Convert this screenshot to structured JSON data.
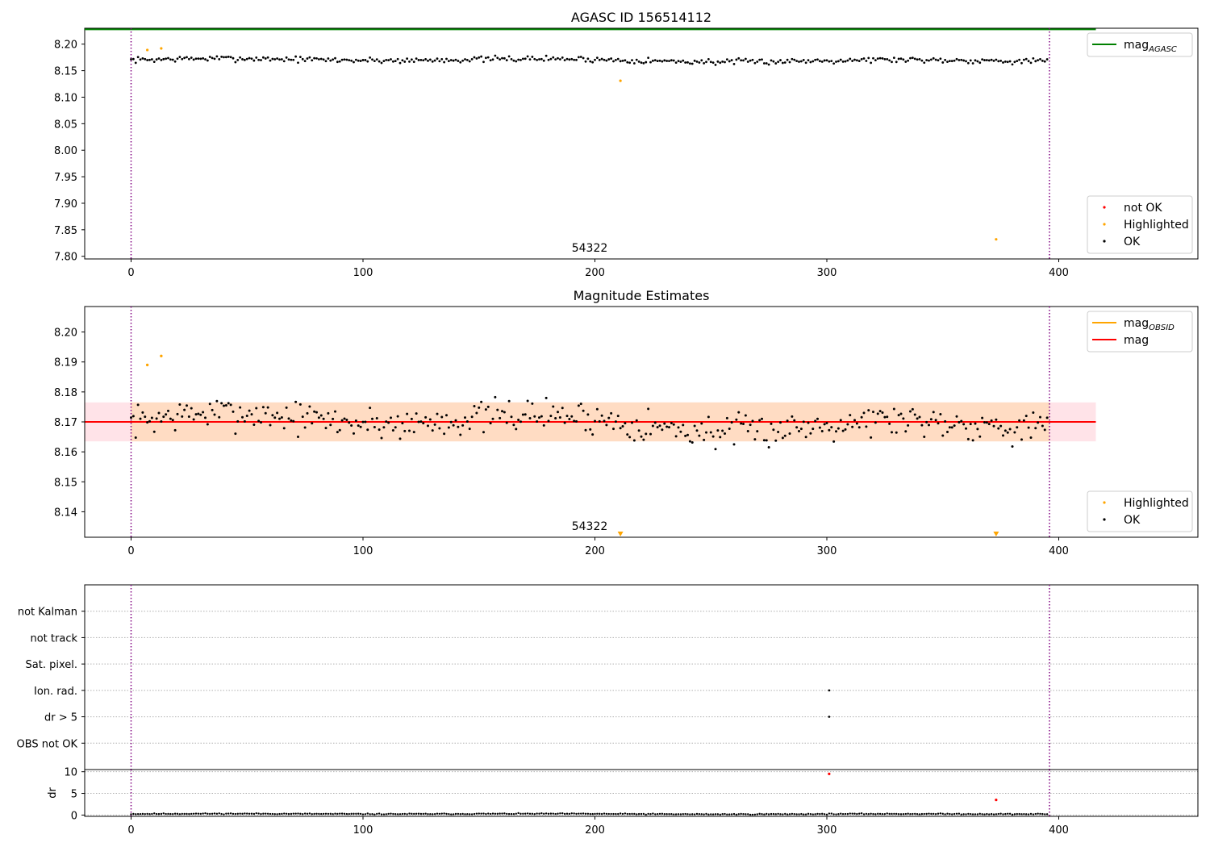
{
  "colors": {
    "ok": "#000000",
    "not_ok": "#ff0000",
    "highlighted": "#ffa500",
    "mag_line": "#ff0000",
    "mag_band": "#ffc0cb",
    "mag_obsid": "#ffa500",
    "mag_obsid_band": "#ffdab9",
    "mag_agasc": "#008000",
    "obsid_boundary": "#800080",
    "grid": "#b0b0b0"
  },
  "chart_data": [
    {
      "type": "scatter",
      "title": "AGASC ID 156514112",
      "xlim": [
        -20,
        460
      ],
      "ylim": [
        7.795,
        8.23
      ],
      "xticks": [
        0,
        100,
        200,
        300,
        400
      ],
      "yticks": [
        7.8,
        7.85,
        7.9,
        7.95,
        8.0,
        8.05,
        8.1,
        8.15,
        8.2
      ],
      "ytick_labels": [
        "7.80",
        "7.85",
        "7.90",
        "7.95",
        "8.00",
        "8.05",
        "8.10",
        "8.15",
        "8.20"
      ],
      "obsid_label": "54322",
      "obsid_boundaries": [
        0,
        396
      ],
      "mag_agasc": 8.228,
      "mag_agasc_x_range": [
        -20,
        416
      ],
      "ok_series": {
        "n": 396,
        "base": 8.17,
        "amp": 0.006,
        "seed": 7
      },
      "highlighted_points": [
        {
          "x": 7,
          "y": 8.189
        },
        {
          "x": 13,
          "y": 8.192
        },
        {
          "x": 211,
          "y": 8.131
        },
        {
          "x": 373,
          "y": 7.832
        }
      ],
      "legends": [
        {
          "position": "top-right",
          "entries": [
            {
              "label": "mag",
              "sub": "AGASC",
              "marker": "line",
              "color": "#008000"
            }
          ]
        },
        {
          "position": "bottom-right",
          "entries": [
            {
              "label": "not OK",
              "marker": "dot",
              "color": "#ff0000"
            },
            {
              "label": "Highlighted",
              "marker": "dot",
              "color": "#ffa500"
            },
            {
              "label": "OK",
              "marker": "dot",
              "color": "#000000"
            }
          ]
        }
      ]
    },
    {
      "type": "scatter",
      "title": "Magnitude Estimates",
      "xlim": [
        -20,
        460
      ],
      "ylim": [
        8.1315,
        8.2085
      ],
      "xticks": [
        0,
        100,
        200,
        300,
        400
      ],
      "yticks": [
        8.14,
        8.15,
        8.16,
        8.17,
        8.18,
        8.19,
        8.2
      ],
      "ytick_labels": [
        "8.14",
        "8.15",
        "8.16",
        "8.17",
        "8.18",
        "8.19",
        "8.20"
      ],
      "obsid_label": "54322",
      "obsid_boundaries": [
        0,
        396
      ],
      "mag": 8.17,
      "mag_band": [
        8.1635,
        8.1765
      ],
      "mag_obsid": 8.17,
      "mag_obsid_band": [
        8.1635,
        8.1765
      ],
      "band_x_range": [
        -20,
        416
      ],
      "ok_series": {
        "n": 396,
        "base": 8.17,
        "amp": 0.006,
        "seed": 7
      },
      "highlighted_points": [
        {
          "x": 7,
          "y": 8.189
        },
        {
          "x": 13,
          "y": 8.192
        }
      ],
      "clipped_markers": [
        {
          "x": 211
        },
        {
          "x": 373
        }
      ],
      "legends": [
        {
          "position": "top-right",
          "entries": [
            {
              "label": "mag",
              "sub": "OBSID",
              "marker": "line",
              "color": "#ffa500"
            },
            {
              "label": "mag",
              "sub": "",
              "marker": "line",
              "color": "#ff0000"
            }
          ]
        },
        {
          "position": "bottom-right",
          "entries": [
            {
              "label": "Highlighted",
              "marker": "dot",
              "color": "#ffa500"
            },
            {
              "label": "OK",
              "marker": "dot",
              "color": "#000000"
            }
          ]
        }
      ]
    },
    {
      "type": "scatter",
      "title": "",
      "xlim": [
        -20,
        460
      ],
      "categories": [
        "OBS not OK",
        "dr > 5",
        "Ion. rad.",
        "Sat. pixel.",
        "not track",
        "not Kalman"
      ],
      "flag_points": [
        {
          "category": "dr > 5",
          "x": 301
        },
        {
          "category": "Ion. rad.",
          "x": 301
        }
      ],
      "obsid_boundaries": [
        0,
        396
      ]
    },
    {
      "type": "scatter",
      "title": "",
      "ylabel": "dr",
      "xlim": [
        -20,
        460
      ],
      "ylim": [
        -0.3,
        10.5
      ],
      "xticks": [
        0,
        100,
        200,
        300,
        400
      ],
      "yticks": [
        0,
        5,
        10
      ],
      "ytick_labels": [
        "0",
        "5",
        "10"
      ],
      "obsid_boundaries": [
        0,
        396
      ],
      "ok_series": {
        "n": 396,
        "base": 0.25,
        "amp": 0.12,
        "seed": 11
      },
      "not_ok_points": [
        {
          "x": 301,
          "y": 9.5
        },
        {
          "x": 373,
          "y": 3.5
        }
      ]
    }
  ]
}
